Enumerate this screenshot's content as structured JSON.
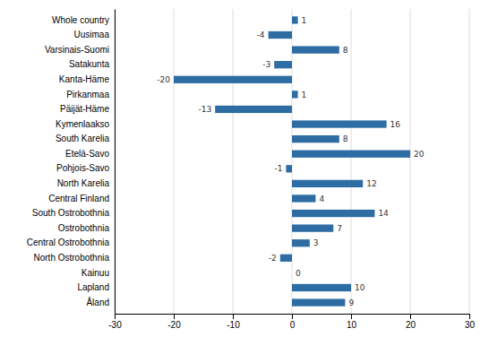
{
  "chart_data": {
    "type": "bar",
    "orientation": "horizontal",
    "categories": [
      "Whole country",
      "Uusimaa",
      "Varsinais-Suomi",
      "Satakunta",
      "Kanta-Häme",
      "Pirkanmaa",
      "Päijät-Häme",
      "Kymenlaakso",
      "South Karelia",
      "Etelä-Savo",
      "Pohjois-Savo",
      "North Karelia",
      "Central Finland",
      "South Ostrobothnia",
      "Ostrobothnia",
      "Central Ostrobothnia",
      "North Ostrobothnia",
      "Kainuu",
      "Lapland",
      "Åland"
    ],
    "values": [
      1,
      -4,
      8,
      -3,
      -20,
      1,
      -13,
      16,
      8,
      20,
      -1,
      12,
      4,
      14,
      7,
      3,
      -2,
      0,
      10,
      9
    ],
    "color": "#2E6DA4",
    "xlim": [
      -30,
      30
    ],
    "xticks": [
      -30,
      -20,
      -10,
      0,
      10,
      20,
      30
    ],
    "grid": true,
    "data_labels": true
  }
}
